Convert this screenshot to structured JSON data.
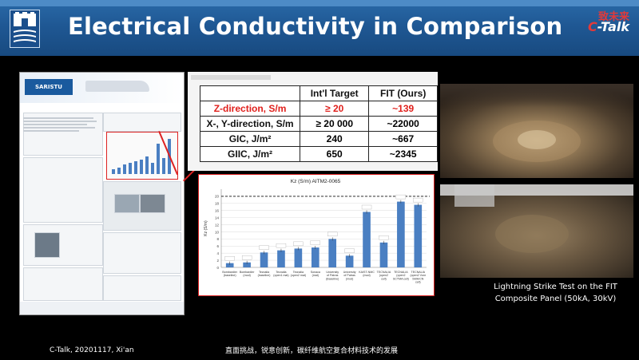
{
  "header": {
    "title": "Electrical Conductivity in Comparison",
    "brand_cn": "致未来",
    "brand_en_c": "C",
    "brand_en_rest": "-Talk"
  },
  "table": {
    "columns": [
      "",
      "Int'l Target",
      "FIT (Ours)"
    ],
    "rows": [
      {
        "label": "Z-direction, S/m",
        "target": "≥ 20",
        "ours": "~139",
        "highlight": true
      },
      {
        "label": "X-, Y-direction, S/m",
        "target": "≥ 20 000",
        "ours": "~22000"
      },
      {
        "label": "GIC, J/m²",
        "target": "240",
        "ours": "~667"
      },
      {
        "label": "GIIC, J/m²",
        "target": "650",
        "ours": "~2345"
      }
    ]
  },
  "chart_data": {
    "type": "bar",
    "title": "Kz (S/m)    AITM2-0065",
    "ylabel": "Kz (S/m)",
    "ylim": [
      0,
      22
    ],
    "yticks": [
      0,
      2,
      4,
      6,
      8,
      10,
      12,
      14,
      16,
      18,
      20
    ],
    "reference_line": 20,
    "categories": [
      "Bombardier (baseline)",
      "Bombardier (mod)",
      "Tecnalia (baseline)",
      "Tecnalia (open1 mat)",
      "Tecnalia (open2 mat)",
      "Sonaca (mat)",
      "University of Patras (Baseline)",
      "University of Patras (mod)",
      "KAIST-NMC (mod)",
      "TECNALIA (open2 cell)",
      "TECNALIA (open2 SCTMA cell)",
      "TECNALIA (open2 Vonr SWA/CN cell)"
    ],
    "values": [
      1.2,
      1.4,
      4.2,
      4.8,
      5.3,
      5.6,
      8.0,
      3.3,
      15.6,
      7.0,
      18.5,
      17.6
    ]
  },
  "caption": {
    "line1": "Lightning Strike Test on the FIT",
    "line2": "Composite Panel (50kA, 30kV)"
  },
  "footer": {
    "left": "C-Talk, 20201117, Xi'an",
    "center": "直面挑战，锐意创新，碳纤维航空复合材料技术的发展"
  },
  "poster": {
    "badge": "SARISTU"
  },
  "colors": {
    "header_blue": "#1f5894",
    "highlight_red": "#e0201c",
    "bar_blue": "#4a7fc2"
  }
}
